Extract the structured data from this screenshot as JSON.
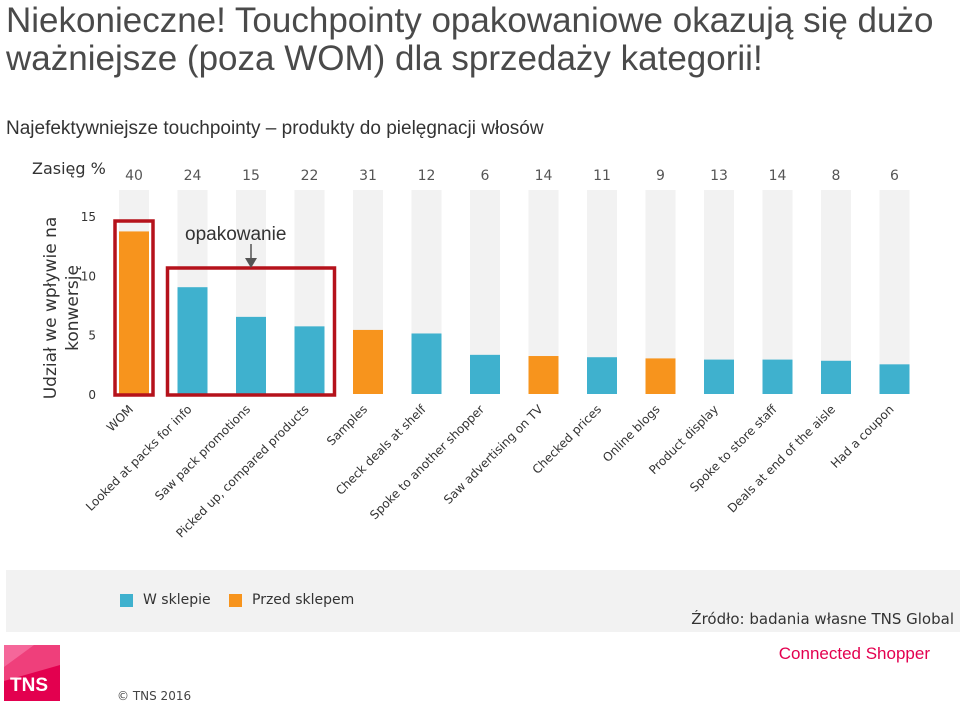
{
  "header": {
    "title": "Niekonieczne! Touchpointy opakowaniowe okazują się dużo ważniejsze (poza WOM) dla sprzedaży kategorii!",
    "subtitle": "Najefektywniejsze touchpointy – produkty do pielęgnacji włosów"
  },
  "chart_data": {
    "type": "bar",
    "reach_label": "Zasięg %",
    "ylabel": "Udział we wpływie na konwersję",
    "ylim": [
      0,
      15
    ],
    "yticks": [
      0,
      5,
      10,
      15
    ],
    "annotation": "opakowanie",
    "categories": [
      "WOM",
      "Looked at packs for info",
      "Saw pack promotions",
      "Picked up, compared products",
      "Samples",
      "Check deals at shelf",
      "Spoke to another shopper",
      "Saw advertising on TV",
      "Checked prices",
      "Online blogs",
      "Product display",
      "Spoke to store staff",
      "Deals at end of the aisle",
      "Had a coupon"
    ],
    "reach": [
      "40",
      "24",
      "15",
      "22",
      "31",
      "12",
      "6",
      "14",
      "11",
      "9",
      "13",
      "14",
      "8",
      "6"
    ],
    "values": [
      13.7,
      9.0,
      6.5,
      5.7,
      5.4,
      5.1,
      3.3,
      3.2,
      3.1,
      3.0,
      2.9,
      2.9,
      2.8,
      2.5
    ],
    "groups": [
      "Przed sklepem",
      "W sklepie",
      "W sklepie",
      "W sklepie",
      "Przed sklepem",
      "W sklepie",
      "W sklepie",
      "Przed sklepem",
      "W sklepie",
      "Przed sklepem",
      "W sklepie",
      "W sklepie",
      "W sklepie",
      "W sklepie"
    ],
    "legend": [
      {
        "name": "W sklepie",
        "color": "#3fb1ce"
      },
      {
        "name": "Przed sklepem",
        "color": "#f7941d"
      }
    ],
    "background_bar_color": "#f2f2f2",
    "highlight_color": "#b5121b"
  },
  "footer": {
    "source": "Źródło: badania własne TNS Global",
    "logo": "TNS",
    "copyright": "© TNS 2016",
    "brand": "Connected Shopper"
  }
}
